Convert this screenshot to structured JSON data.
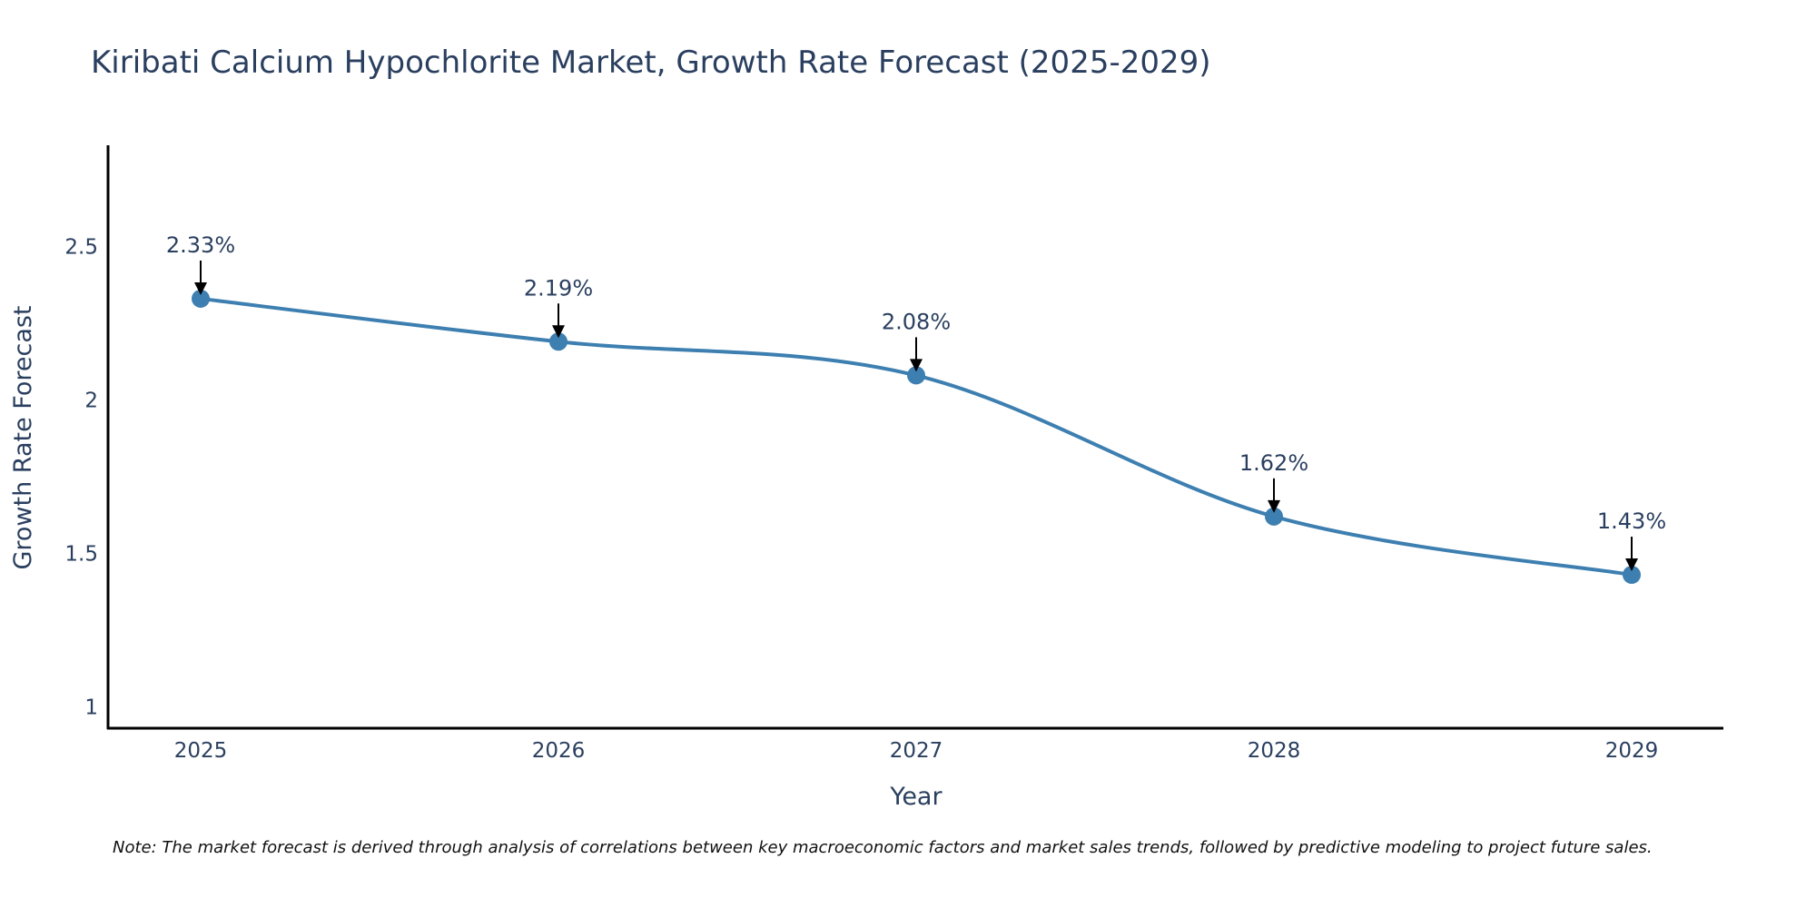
{
  "chart_data": {
    "type": "line",
    "title": "Kiribati Calcium Hypochlorite Market, Growth Rate Forecast (2025-2029)",
    "xlabel": "Year",
    "ylabel": "Growth Rate Forecast",
    "categories": [
      "2025",
      "2026",
      "2027",
      "2028",
      "2029"
    ],
    "series": [
      {
        "name": "Growth Rate Forecast",
        "values": [
          2.33,
          2.19,
          2.08,
          1.62,
          1.43
        ],
        "labels": [
          "2.33%",
          "2.19%",
          "2.08%",
          "1.62%",
          "1.43%"
        ]
      }
    ],
    "yticks": [
      1,
      1.5,
      2,
      2.5
    ],
    "ytick_labels": [
      "1",
      "1.5",
      "2",
      "2.5"
    ],
    "ylim": [
      0.93,
      2.83
    ],
    "grid": false,
    "line_color": "#3d7fb0",
    "marker_color": "#3d7fb0",
    "note": "Note: The market forecast is derived through analysis of correlations between key macroeconomic factors and market sales trends, followed by predictive modeling to project future sales."
  }
}
